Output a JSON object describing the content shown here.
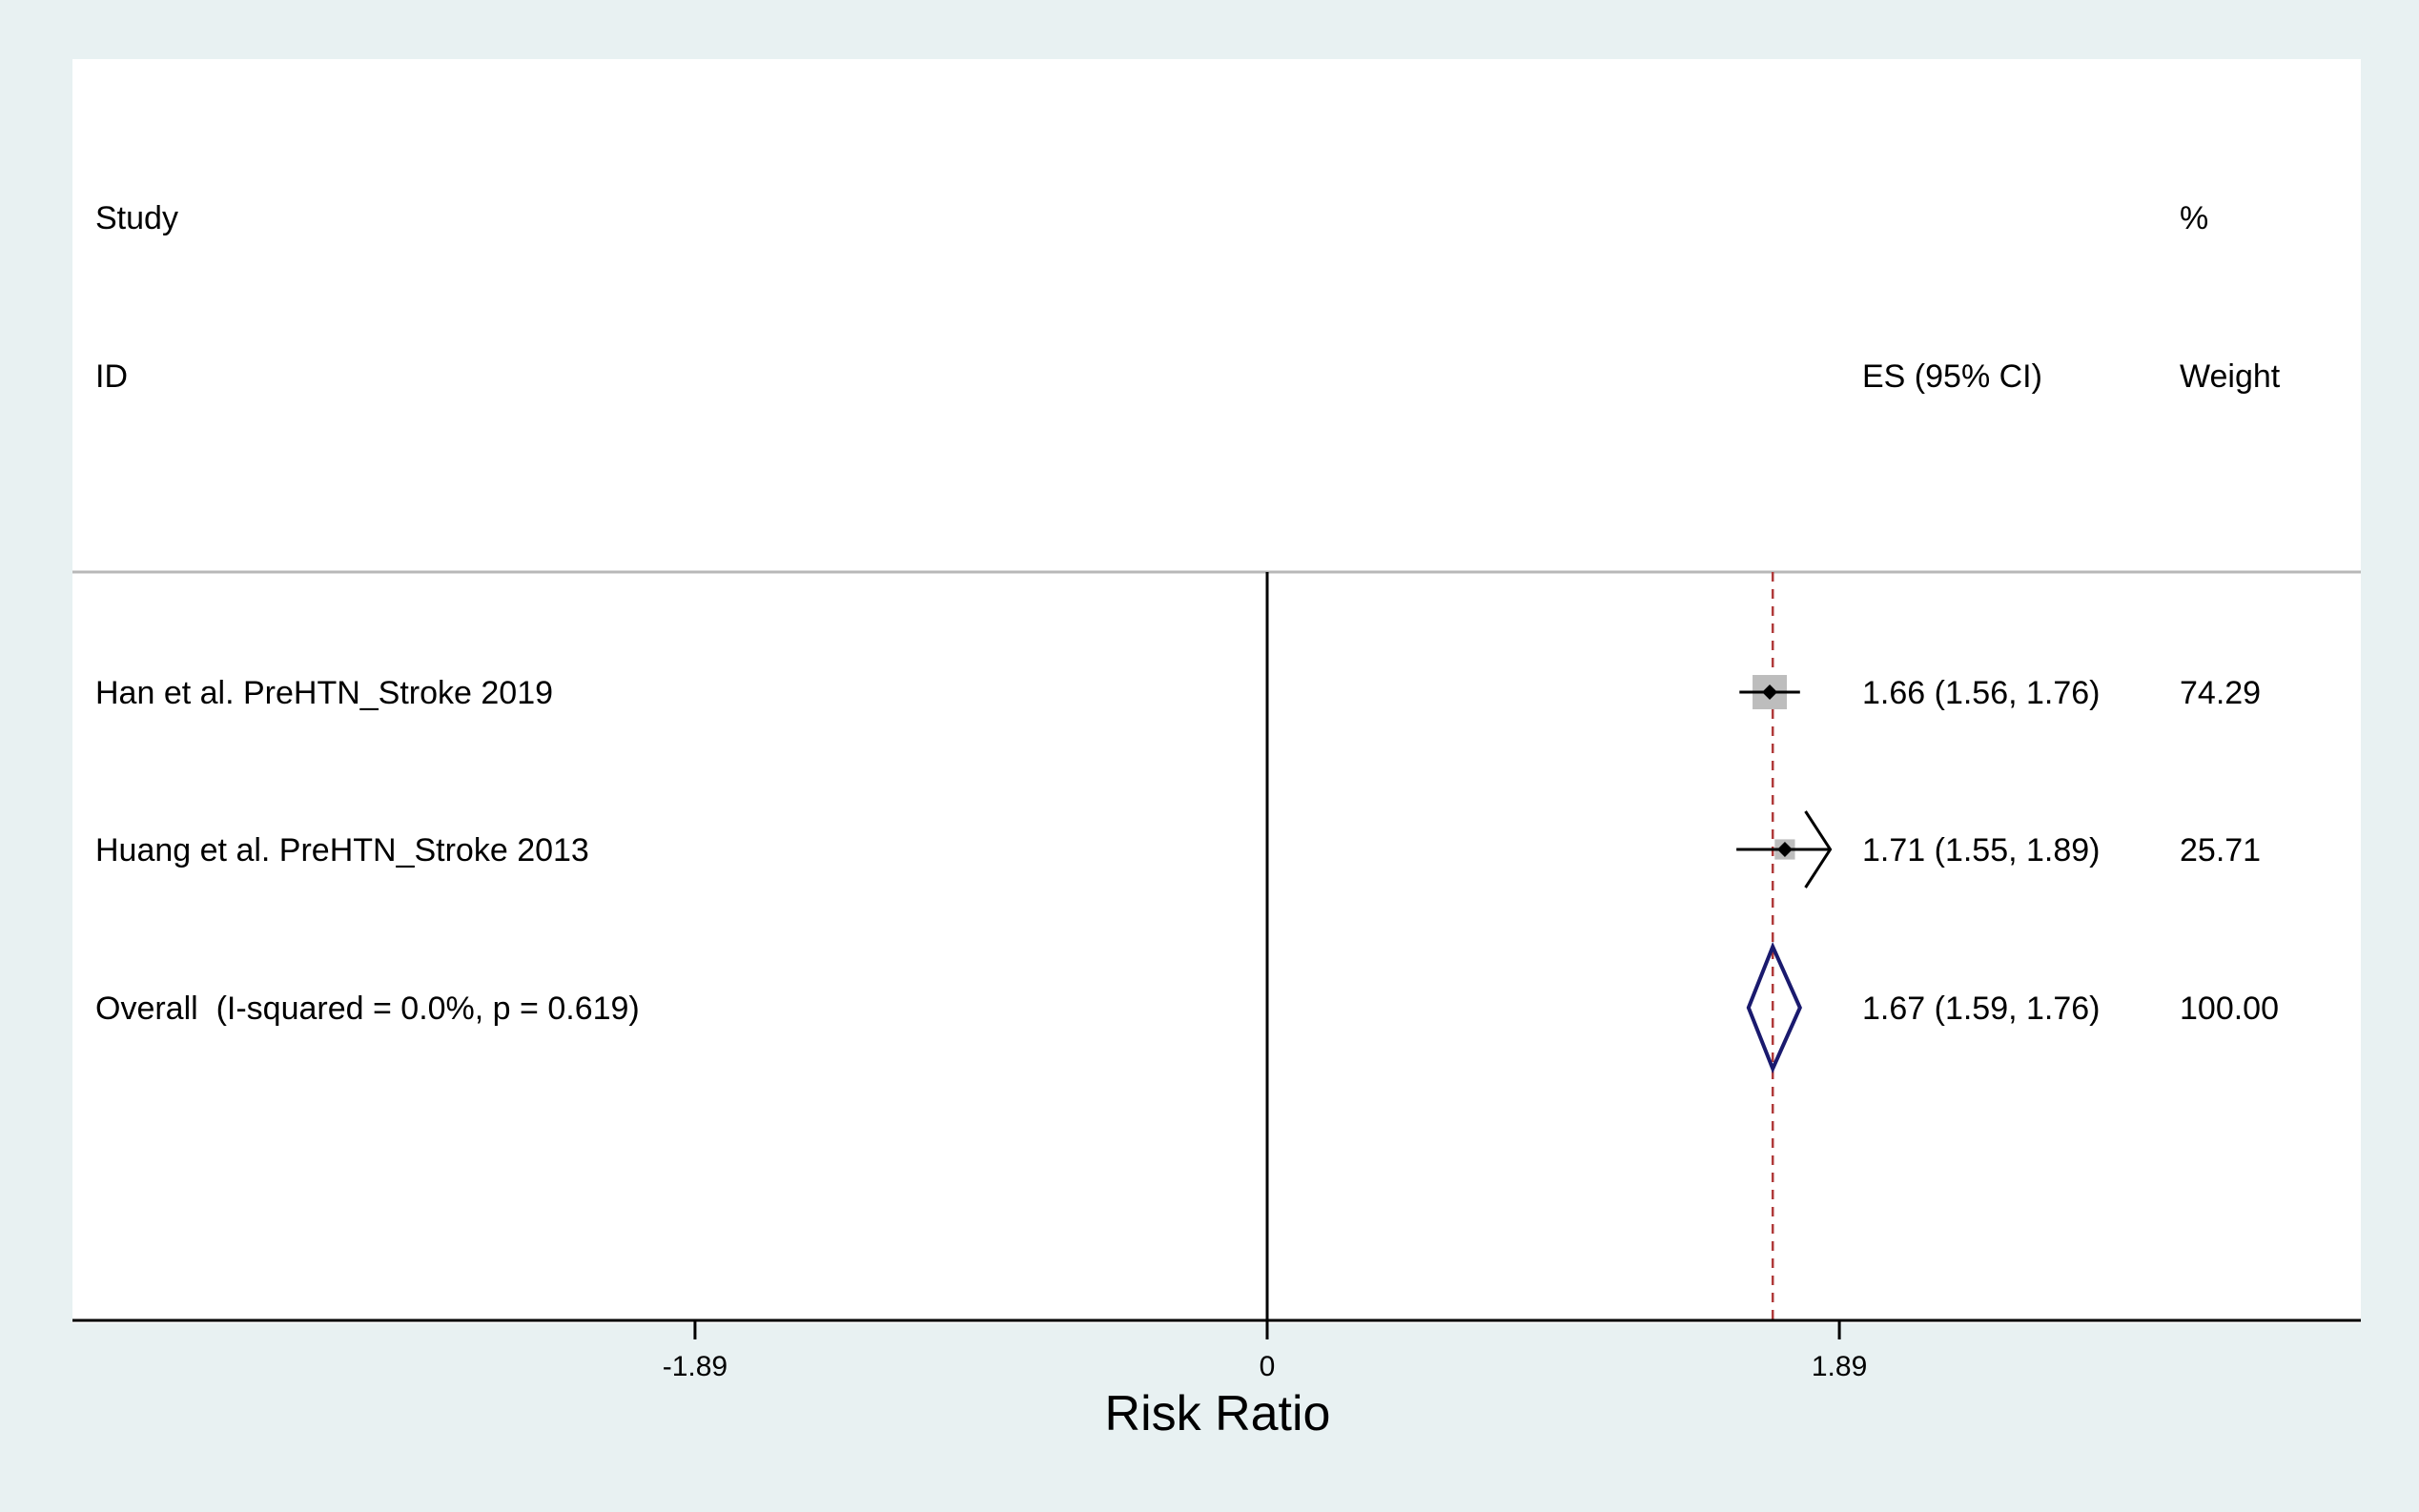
{
  "header": {
    "study_line1": "Study",
    "study_line2": "ID",
    "es_label": "ES (95% CI)",
    "weight_line1": "%",
    "weight_line2": "Weight"
  },
  "rows": [
    {
      "label": "Han et al. PreHTN_Stroke 2019",
      "es_text": "1.66 (1.56, 1.76)",
      "weight_text": "74.29"
    },
    {
      "label": "Huang et al. PreHTN_Stroke 2013",
      "es_text": "1.71 (1.55, 1.89)",
      "weight_text": "25.71"
    },
    {
      "label": "Overall  (I-squared = 0.0%, p = 0.619)",
      "es_text": "1.67 (1.59, 1.76)",
      "weight_text": "100.00"
    }
  ],
  "axis": {
    "ticks": [
      "-1.89",
      "0",
      "1.89"
    ],
    "title": "Risk Ratio"
  },
  "chart_data": {
    "type": "forest",
    "xlabel": "Risk Ratio",
    "x_ticks": [
      -1.89,
      0,
      1.89
    ],
    "xlim": [
      -3.94,
      3.6
    ],
    "null_line": 0,
    "grid": false,
    "studies": [
      {
        "name": "Han et al. PreHTN_Stroke 2019",
        "es": 1.66,
        "ci_low": 1.56,
        "ci_high": 1.76,
        "weight": 74.29,
        "arrow_right": false
      },
      {
        "name": "Huang et al. PreHTN_Stroke 2013",
        "es": 1.71,
        "ci_low": 1.55,
        "ci_high": 1.89,
        "weight": 25.71,
        "arrow_right": true
      }
    ],
    "overall": {
      "name": "Overall",
      "i_squared": "0.0%",
      "p": 0.619,
      "es": 1.67,
      "ci_low": 1.59,
      "ci_high": 1.76,
      "weight": 100.0
    },
    "colors": {
      "box": "#bdbdbd",
      "point": "#000000",
      "diamond": "#1a1a6e",
      "overall_line": "#b03a3a"
    }
  }
}
